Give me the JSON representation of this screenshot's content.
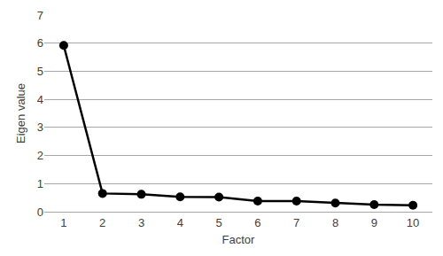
{
  "chart_data": {
    "type": "line",
    "x_label": "Factor",
    "y_label": "Eigen value",
    "categories": [
      "1",
      "2",
      "3",
      "4",
      "5",
      "6",
      "7",
      "8",
      "9",
      "10"
    ],
    "values": [
      5.92,
      0.65,
      0.62,
      0.53,
      0.52,
      0.38,
      0.38,
      0.31,
      0.25,
      0.23
    ],
    "color": "#000000",
    "marker": "circle",
    "ylim": [
      0,
      7
    ],
    "yticks": [
      0,
      1,
      2,
      3,
      4,
      5,
      6,
      7
    ],
    "grid": true
  }
}
